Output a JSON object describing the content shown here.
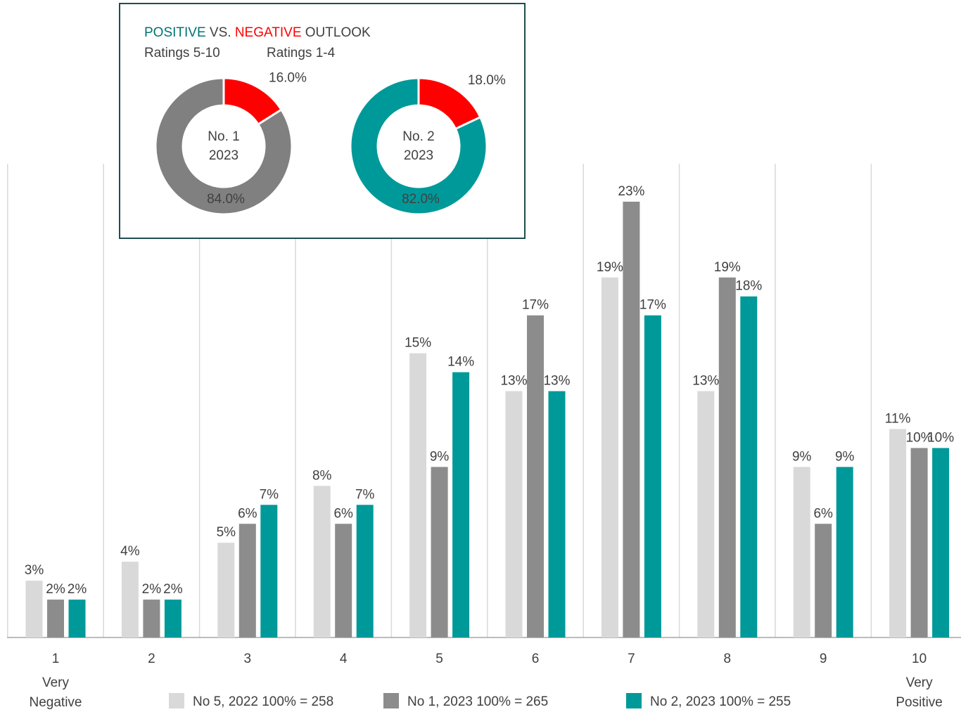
{
  "chart_data": [
    {
      "type": "bar",
      "categories": [
        "1",
        "2",
        "3",
        "4",
        "5",
        "6",
        "7",
        "8",
        "9",
        "10"
      ],
      "category_notes": [
        [
          "Very",
          "Negative"
        ],
        null,
        null,
        null,
        null,
        null,
        null,
        null,
        null,
        [
          "Very",
          "Positive"
        ]
      ],
      "ylim": [
        0,
        25
      ],
      "series": [
        {
          "name": "No 5, 2022 100% = 258",
          "color": "#d9d9d9",
          "values": [
            3,
            4,
            5,
            8,
            15,
            13,
            19,
            13,
            9,
            11
          ],
          "value_labels": [
            "3%",
            "4%",
            "5%",
            "8%",
            "15%",
            "13%",
            "19%",
            "13%",
            "9%",
            "11%"
          ]
        },
        {
          "name": "No 1, 2023 100% = 265",
          "color": "#8c8c8c",
          "values": [
            2,
            2,
            6,
            6,
            9,
            17,
            23,
            19,
            6,
            10
          ],
          "value_labels": [
            "2%",
            "2%",
            "6%",
            "6%",
            "9%",
            "17%",
            "23%",
            "19%",
            "6%",
            "10%"
          ]
        },
        {
          "name": "No 2, 2023 100% = 255",
          "color": "#009999",
          "values": [
            2,
            2,
            7,
            7,
            14,
            13,
            17,
            18,
            9,
            10
          ],
          "value_labels": [
            "2%",
            "2%",
            "7%",
            "7%",
            "14%",
            "13%",
            "17%",
            "18%",
            "9%",
            "10%"
          ]
        }
      ]
    },
    {
      "type": "pie",
      "center_label": [
        "No. 1",
        "2023"
      ],
      "center_color": "#595959",
      "values": [
        16,
        84
      ],
      "value_labels": [
        "16.0%",
        "84.0%"
      ],
      "colors": [
        "#ff0000",
        "#808080"
      ]
    },
    {
      "type": "pie",
      "center_label": [
        "No. 2",
        "2023"
      ],
      "center_color": "#009999",
      "values": [
        18,
        82
      ],
      "value_labels": [
        "18.0%",
        "82.0%"
      ],
      "colors": [
        "#ff0000",
        "#009999"
      ]
    }
  ],
  "inset": {
    "title": [
      "POSITIVE",
      "VS.",
      "NEGATIVE",
      "OUTLOOK"
    ],
    "title_colors": [
      "#007373",
      "#404040",
      "#ff0000",
      "#404040"
    ],
    "legend": [
      "Ratings 5-10",
      "Ratings 1-4"
    ],
    "legend_colors": [
      "#007373",
      "#ff0000"
    ]
  }
}
